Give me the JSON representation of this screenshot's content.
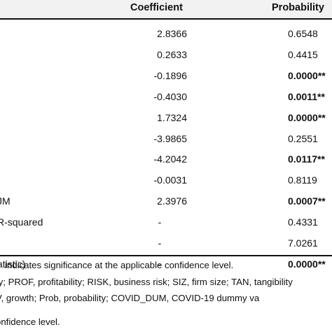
{
  "header": {
    "coefficient": "Coefficient",
    "probability": "Probability"
  },
  "rows": [
    {
      "label": "",
      "coef": "2.8366",
      "prob": "0.6548",
      "bold": false
    },
    {
      "label": "",
      "coef": "0.2633",
      "prob": "0.4415",
      "bold": false
    },
    {
      "label": "",
      "coef": "-0.1896",
      "prob": "0.0000**",
      "bold": true
    },
    {
      "label": "",
      "coef": "-0.4030",
      "prob": "0.0011**",
      "bold": true
    },
    {
      "label": "",
      "coef": "1.7324",
      "prob": "0.0000**",
      "bold": true
    },
    {
      "label": "",
      "coef": "-3.9865",
      "prob": "0.2551",
      "bold": false
    },
    {
      "label": "",
      "coef": "-4.2042",
      "prob": "0.0117**",
      "bold": true
    },
    {
      "label": "",
      "coef": "-0.0031",
      "prob": "0.8119",
      "bold": false
    },
    {
      "label": "JM",
      "coef": "2.3976",
      "prob": "0.0007**",
      "bold": true
    },
    {
      "label": "R-squared",
      "coef": "-",
      "prob": "0.4331",
      "bold": false
    },
    {
      "label": "",
      "coef": "-",
      "prob": "7.0261",
      "bold": false
    },
    {
      "label": "atistic)",
      "coef": "-",
      "prob": "0.0000**",
      "bold": true
    }
  ],
  "notes": [
    "indicates significance at the applicable confidence level.",
    "ty; PROF, profitability; RISK, business risk; SIZ, firm size; TAN, tangibility",
    "V,  growth;  Prob,  probability;  COVID_DUM,  COVID-19  dummy  va",
    "onfidence level."
  ]
}
